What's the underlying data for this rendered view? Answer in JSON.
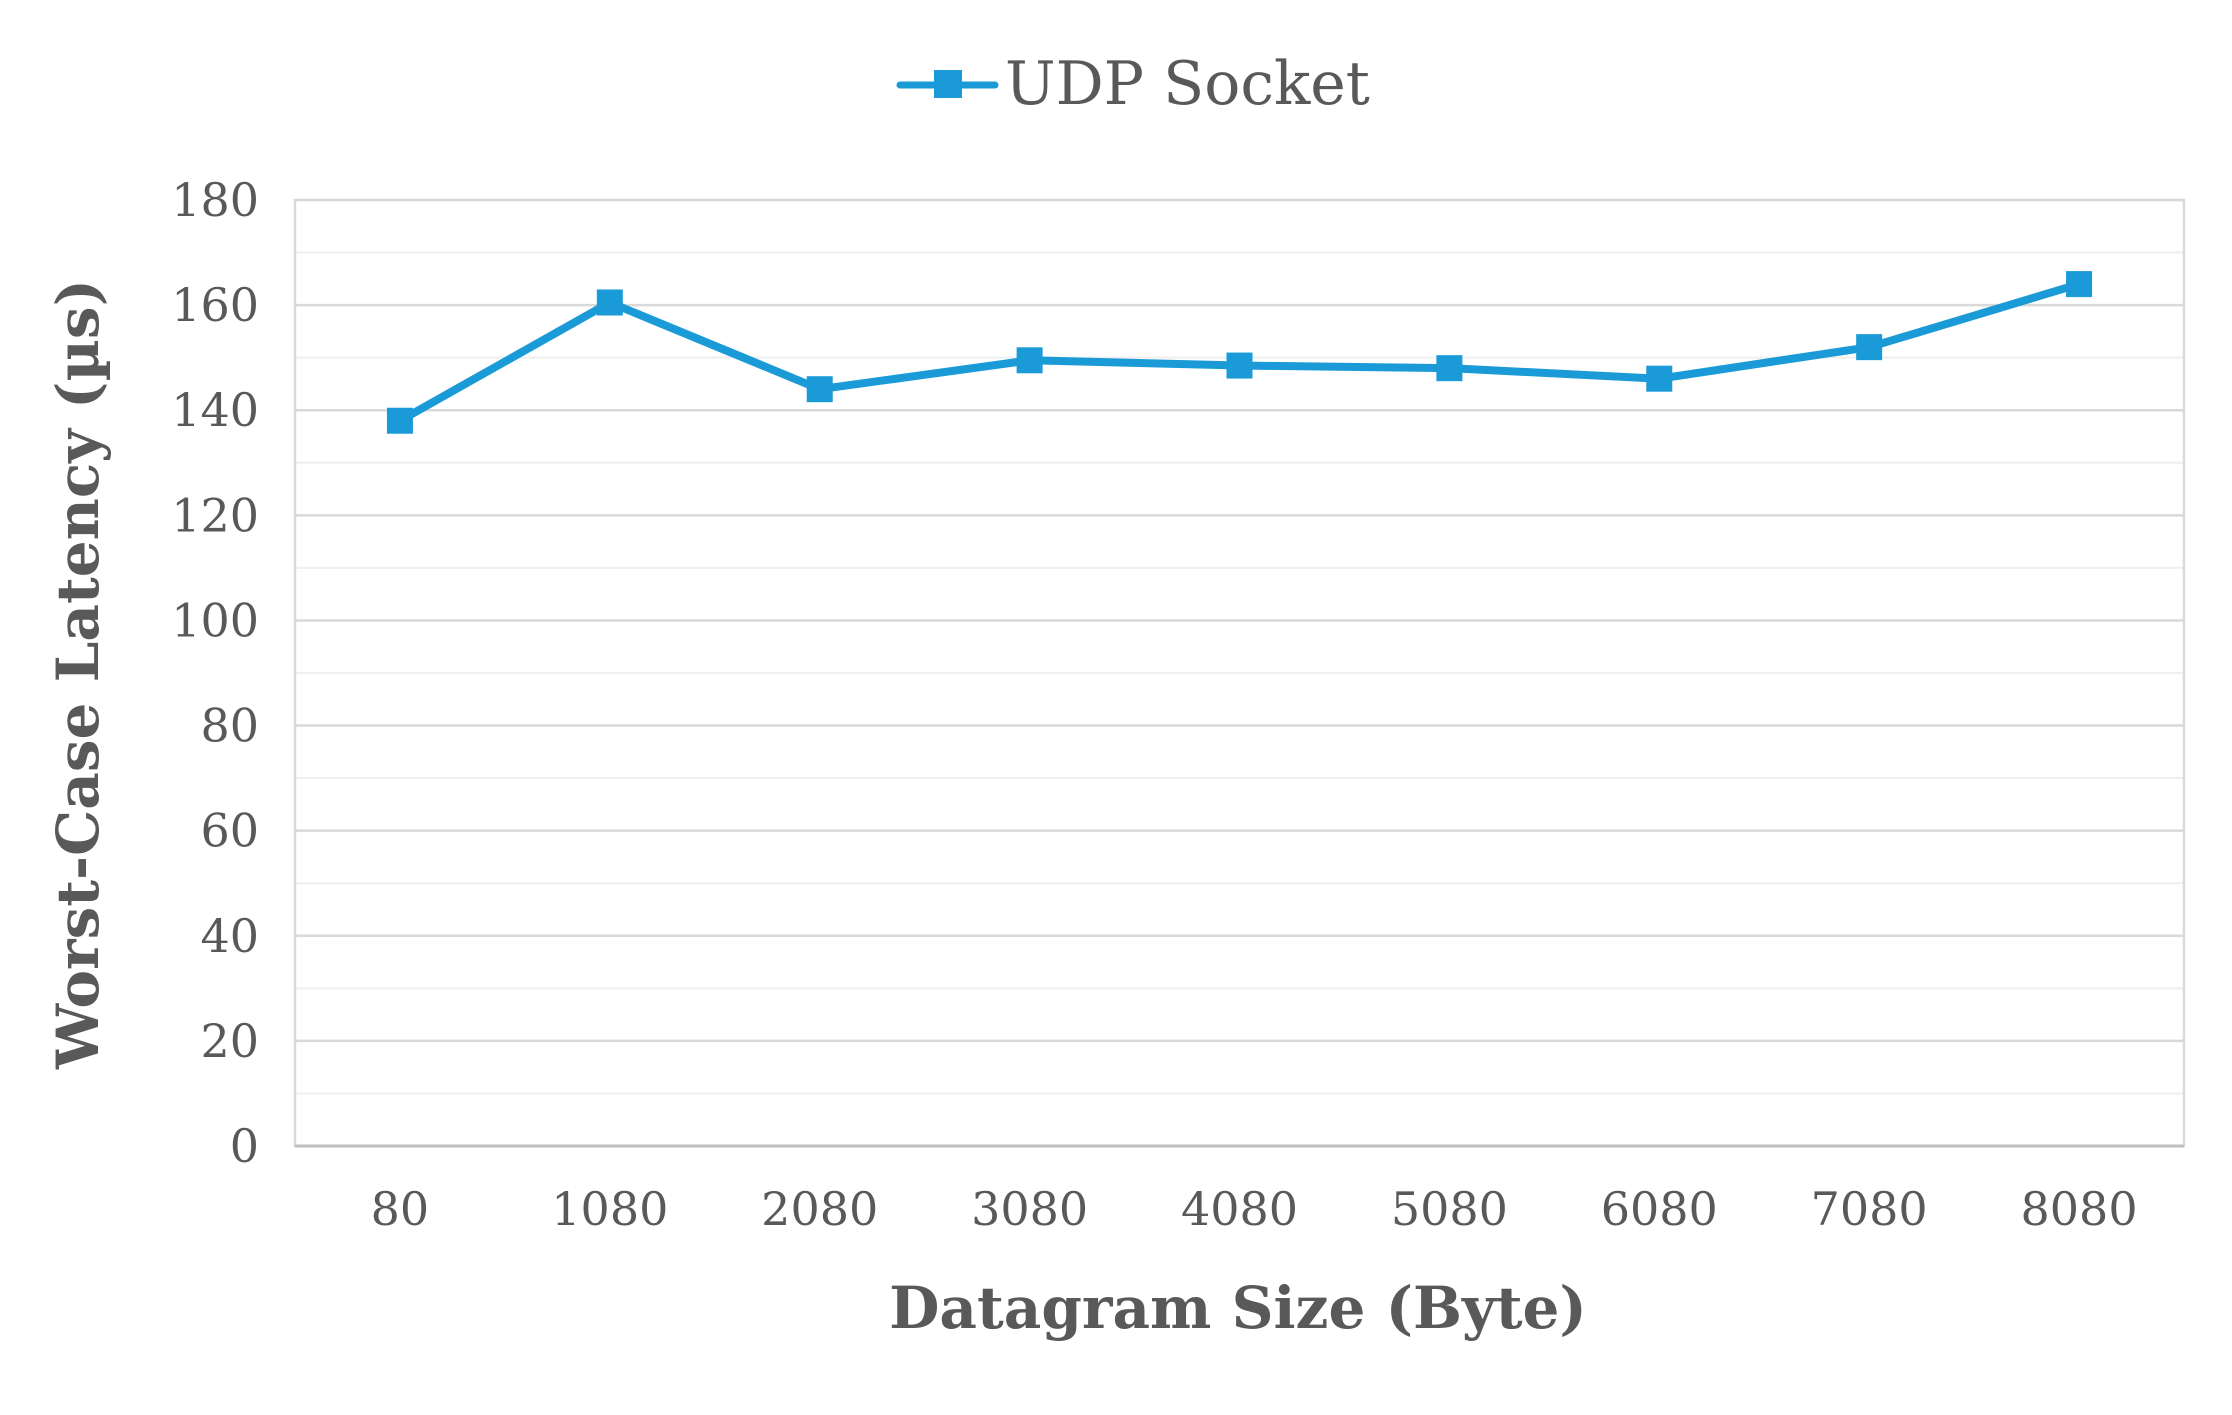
{
  "chart_data": {
    "type": "line",
    "title": "",
    "xlabel": "Datagram Size (Byte)",
    "ylabel": "Worst-Case Latency (µs)",
    "categories": [
      "80",
      "1080",
      "2080",
      "3080",
      "4080",
      "5080",
      "6080",
      "7080",
      "8080"
    ],
    "series": [
      {
        "name": "UDP Socket",
        "color": "#1a9bd7",
        "marker": "square",
        "values": [
          138,
          160.5,
          144,
          149.5,
          148.5,
          148,
          146,
          152,
          164
        ]
      }
    ],
    "ylim": [
      0,
      180
    ],
    "yticks": [
      0,
      20,
      40,
      60,
      80,
      100,
      120,
      140,
      160,
      180
    ],
    "grid": true,
    "legend_position": "top-center",
    "colors": {
      "series": "#1a9bd7",
      "gridline_major": "#d9d9d9",
      "gridline_minor": "#efefef",
      "text": "#595959"
    }
  }
}
